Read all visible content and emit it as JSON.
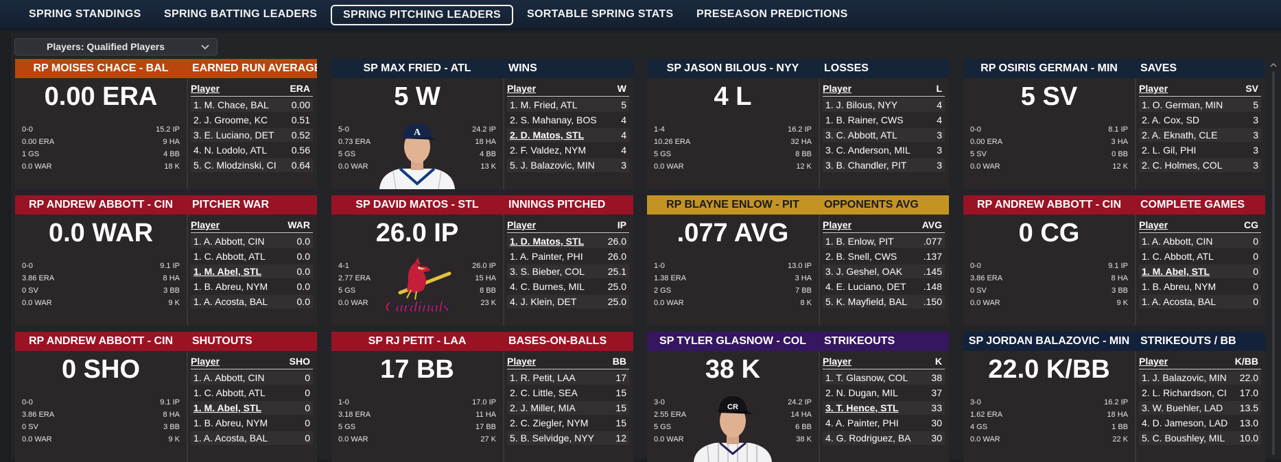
{
  "tabs": [
    "SPRING STANDINGS",
    "SPRING BATTING LEADERS",
    "SPRING PITCHING LEADERS",
    "SORTABLE SPRING STATS",
    "PRESEASON PREDICTIONS"
  ],
  "active_tab": "SPRING PITCHING LEADERS",
  "filter": {
    "label": "Players: Qualified Players"
  },
  "cards": [
    {
      "title": "RP MOISES CHACE - BAL",
      "category": "EARNED RUN AVERAGE",
      "big": "0.00 ERA",
      "color": "#b9470d",
      "stats_left": [
        "0-0",
        "0.00 ERA",
        "1 GS",
        "0.0 WAR"
      ],
      "stats_right": [
        "15.2 IP",
        "9 HA",
        "4 BB",
        "18 K"
      ],
      "col_player": "Player",
      "col_stat": "ERA",
      "photo": "",
      "rows": [
        {
          "n": "1. M. Chace, BAL",
          "v": "0.00"
        },
        {
          "n": "2. J. Groome, KC",
          "v": "0.51"
        },
        {
          "n": "3. E. Luciano, DET",
          "v": "0.52"
        },
        {
          "n": "4. N. Lodolo, ATL",
          "v": "0.56"
        },
        {
          "n": "5. C. Mlodzinski, CI",
          "v": "0.64"
        }
      ],
      "ul": -1
    },
    {
      "title": "SP MAX FRIED - ATL",
      "category": "WINS",
      "big": "5 W",
      "color": "#152437",
      "stats_left": [
        "5-0",
        "0.73 ERA",
        "5 GS",
        "0.0 WAR"
      ],
      "stats_right": [
        "24.2 IP",
        "18 HA",
        "4 BB",
        "13 K"
      ],
      "col_player": "Player",
      "col_stat": "W",
      "photo": "player-atl",
      "rows": [
        {
          "n": "1. M. Fried, ATL",
          "v": "5"
        },
        {
          "n": "2. S. Mahanay, BOS",
          "v": "4"
        },
        {
          "n": "2. D. Matos, STL",
          "v": "4"
        },
        {
          "n": "2. F. Valdez, NYM",
          "v": "4"
        },
        {
          "n": "5. J. Balazovic, MIN",
          "v": "3"
        }
      ],
      "ul": 2
    },
    {
      "title": "SP JASON BILOUS - NYY",
      "category": "LOSSES",
      "big": "4 L",
      "color": "#152437",
      "stats_left": [
        "1-4",
        "10.26 ERA",
        "5 GS",
        "0.0 WAR"
      ],
      "stats_right": [
        "16.2 IP",
        "32 HA",
        "8 BB",
        "12 K"
      ],
      "col_player": "Player",
      "col_stat": "L",
      "photo": "",
      "rows": [
        {
          "n": "1. J. Bilous, NYY",
          "v": "4"
        },
        {
          "n": "1. B. Rainer, CWS",
          "v": "4"
        },
        {
          "n": "3. C. Abbott, ATL",
          "v": "3"
        },
        {
          "n": "3. C. Anderson, MIL",
          "v": "3"
        },
        {
          "n": "3. B. Chandler, PIT",
          "v": "3"
        }
      ],
      "ul": -1
    },
    {
      "title": "RP OSIRIS GERMAN - MIN",
      "category": "SAVES",
      "big": "5 SV",
      "color": "#152437",
      "stats_left": [
        "0-0",
        "0.00 ERA",
        "5 SV",
        "0.0 WAR"
      ],
      "stats_right": [
        "8.1 IP",
        "3 HA",
        "0 BB",
        "12 K"
      ],
      "col_player": "Player",
      "col_stat": "SV",
      "photo": "",
      "rows": [
        {
          "n": "1. O. German, MIN",
          "v": "5"
        },
        {
          "n": "2. A. Cox, SD",
          "v": "3"
        },
        {
          "n": "2. A. Eknath, CLE",
          "v": "3"
        },
        {
          "n": "2. L. Gil, PHI",
          "v": "3"
        },
        {
          "n": "2. C. Holmes, COL",
          "v": "3"
        }
      ],
      "ul": -1
    },
    {
      "title": "RP ANDREW ABBOTT - CIN",
      "category": "PITCHER WAR",
      "big": "0.0 WAR",
      "color": "#9a1325",
      "stats_left": [
        "0-0",
        "3.86 ERA",
        "0 SV",
        "0.0 WAR"
      ],
      "stats_right": [
        "9.1 IP",
        "8 HA",
        "3 BB",
        "9 K"
      ],
      "col_player": "Player",
      "col_stat": "WAR",
      "photo": "",
      "rows": [
        {
          "n": "1. A. Abbott, CIN",
          "v": "0.0"
        },
        {
          "n": "1. C. Abbott, ATL",
          "v": "0.0"
        },
        {
          "n": "1. M. Abel, STL",
          "v": "0.0"
        },
        {
          "n": "1. B. Abreu, NYM",
          "v": "0.0"
        },
        {
          "n": "1. A. Acosta, BAL",
          "v": "0.0"
        }
      ],
      "ul": 2
    },
    {
      "title": "SP DAVID MATOS - STL",
      "category": "INNINGS PITCHED",
      "big": "26.0 IP",
      "color": "#9a1325",
      "stats_left": [
        "4-1",
        "2.77 ERA",
        "5 GS",
        "0.0 WAR"
      ],
      "stats_right": [
        "26.0 IP",
        "15 HA",
        "8 BB",
        "23 K"
      ],
      "col_player": "Player",
      "col_stat": "IP",
      "photo": "logo-stl",
      "logo_text": "Cardinals",
      "rows": [
        {
          "n": "1. D. Matos, STL",
          "v": "26.0"
        },
        {
          "n": "1. A. Painter, PHI",
          "v": "26.0"
        },
        {
          "n": "3. S. Bieber, COL",
          "v": "25.1"
        },
        {
          "n": "4. C. Burnes, MIL",
          "v": "25.0"
        },
        {
          "n": "4. J. Klein, DET",
          "v": "25.0"
        }
      ],
      "ul": 0
    },
    {
      "title": "RP BLAYNE ENLOW - PIT",
      "category": "OPPONENTS AVG",
      "big": ".077 AVG",
      "color": "#c39424",
      "stats_left": [
        "1-0",
        "1.38 ERA",
        "2 GS",
        "0.0 WAR"
      ],
      "stats_right": [
        "13.0 IP",
        "3 HA",
        "7 BB",
        "8 K"
      ],
      "col_player": "Player",
      "col_stat": "AVG",
      "photo": "",
      "rows": [
        {
          "n": "1. B. Enlow, PIT",
          "v": ".077"
        },
        {
          "n": "2. B. Snell, CWS",
          "v": ".137"
        },
        {
          "n": "3. J. Geshel, OAK",
          "v": ".145"
        },
        {
          "n": "4. E. Luciano, DET",
          "v": ".148"
        },
        {
          "n": "5. K. Mayfield, BAL",
          "v": ".150"
        }
      ],
      "ul": -1
    },
    {
      "title": "RP ANDREW ABBOTT - CIN",
      "category": "COMPLETE GAMES",
      "big": "0 CG",
      "color": "#9a1325",
      "stats_left": [
        "0-0",
        "3.86 ERA",
        "0 SV",
        "0.0 WAR"
      ],
      "stats_right": [
        "9.1 IP",
        "8 HA",
        "3 BB",
        "9 K"
      ],
      "col_player": "Player",
      "col_stat": "CG",
      "photo": "",
      "rows": [
        {
          "n": "1. A. Abbott, CIN",
          "v": "0"
        },
        {
          "n": "1. C. Abbott, ATL",
          "v": "0"
        },
        {
          "n": "1. M. Abel, STL",
          "v": "0"
        },
        {
          "n": "1. B. Abreu, NYM",
          "v": "0"
        },
        {
          "n": "1. A. Acosta, BAL",
          "v": "0"
        }
      ],
      "ul": 2
    },
    {
      "title": "RP ANDREW ABBOTT - CIN",
      "category": "SHUTOUTS",
      "big": "0 SHO",
      "color": "#9a1325",
      "stats_left": [
        "0-0",
        "3.86 ERA",
        "0 SV",
        "0.0 WAR"
      ],
      "stats_right": [
        "9.1 IP",
        "8 HA",
        "3 BB",
        "9 K"
      ],
      "col_player": "Player",
      "col_stat": "SHO",
      "photo": "",
      "rows": [
        {
          "n": "1. A. Abbott, CIN",
          "v": "0"
        },
        {
          "n": "1. C. Abbott, ATL",
          "v": "0"
        },
        {
          "n": "1. M. Abel, STL",
          "v": "0"
        },
        {
          "n": "1. B. Abreu, NYM",
          "v": "0"
        },
        {
          "n": "1. A. Acosta, BAL",
          "v": "0"
        }
      ],
      "ul": 2
    },
    {
      "title": "SP RJ PETIT - LAA",
      "category": "BASES-ON-BALLS",
      "big": "17 BB",
      "color": "#9a1325",
      "stats_left": [
        "1-0",
        "3.18 ERA",
        "5 GS",
        "0.0 WAR"
      ],
      "stats_right": [
        "17.0 IP",
        "11 HA",
        "17 BB",
        "27 K"
      ],
      "col_player": "Player",
      "col_stat": "BB",
      "photo": "",
      "rows": [
        {
          "n": "1. R. Petit, LAA",
          "v": "17"
        },
        {
          "n": "2. C. Little, SEA",
          "v": "15"
        },
        {
          "n": "2. J. Miller, MIA",
          "v": "15"
        },
        {
          "n": "2. C. Ziegler, NYM",
          "v": "15"
        },
        {
          "n": "5. B. Selvidge, NYY",
          "v": "12"
        }
      ],
      "ul": -1
    },
    {
      "title": "SP TYLER GLASNOW - COL",
      "category": "STRIKEOUTS",
      "big": "38 K",
      "color": "#35165f",
      "stats_left": [
        "3-0",
        "2.55 ERA",
        "5 GS",
        "0.0 WAR"
      ],
      "stats_right": [
        "24.2 IP",
        "14 HA",
        "6 BB",
        "38 K"
      ],
      "col_player": "Player",
      "col_stat": "K",
      "photo": "player-col",
      "rows": [
        {
          "n": "1. T. Glasnow, COL",
          "v": "38"
        },
        {
          "n": "2. N. Dugan, MIL",
          "v": "37"
        },
        {
          "n": "3. T. Hence, STL",
          "v": "33"
        },
        {
          "n": "4. A. Painter, PHI",
          "v": "30"
        },
        {
          "n": "4. G. Rodriguez, BA",
          "v": "30"
        }
      ],
      "ul": 2
    },
    {
      "title": "SP JORDAN BALAZOVIC - MIN",
      "category": "STRIKEOUTS / BB",
      "big": "22.0 K/BB",
      "color": "#13223a",
      "stats_left": [
        "3-0",
        "1.62 ERA",
        "4 GS",
        "0.0 WAR"
      ],
      "stats_right": [
        "16.2 IP",
        "18 HA",
        "1 BB",
        "22 K"
      ],
      "col_player": "Player",
      "col_stat": "K/BB",
      "photo": "",
      "rows": [
        {
          "n": "1. J. Balazovic, MIN",
          "v": "22.0"
        },
        {
          "n": "2. L. Richardson, CI",
          "v": "17.0"
        },
        {
          "n": "3. W. Buehler, LAD",
          "v": "13.5"
        },
        {
          "n": "4. D. Jameson, LAD",
          "v": "13.0"
        },
        {
          "n": "5. C. Boushley, MIL",
          "v": "10.0"
        }
      ],
      "ul": -1
    }
  ]
}
